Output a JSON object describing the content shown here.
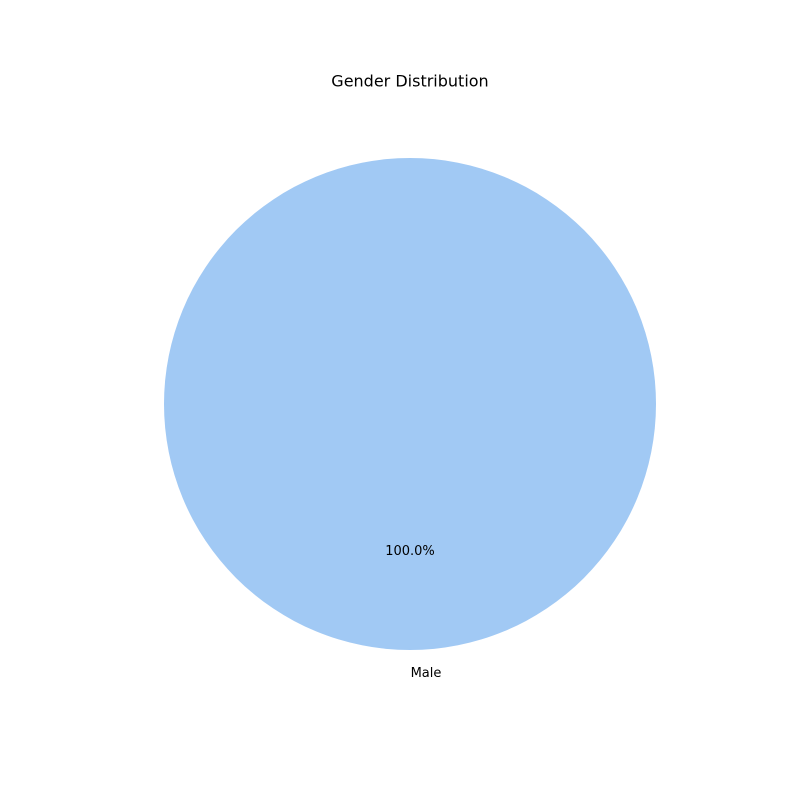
{
  "chart_data": {
    "type": "pie",
    "title": "Gender Distribution",
    "categories": [
      "Male"
    ],
    "values": [
      100.0
    ],
    "percent_labels": [
      "100.0%"
    ],
    "colors": [
      "#a1c9f4"
    ],
    "legend": "none"
  }
}
